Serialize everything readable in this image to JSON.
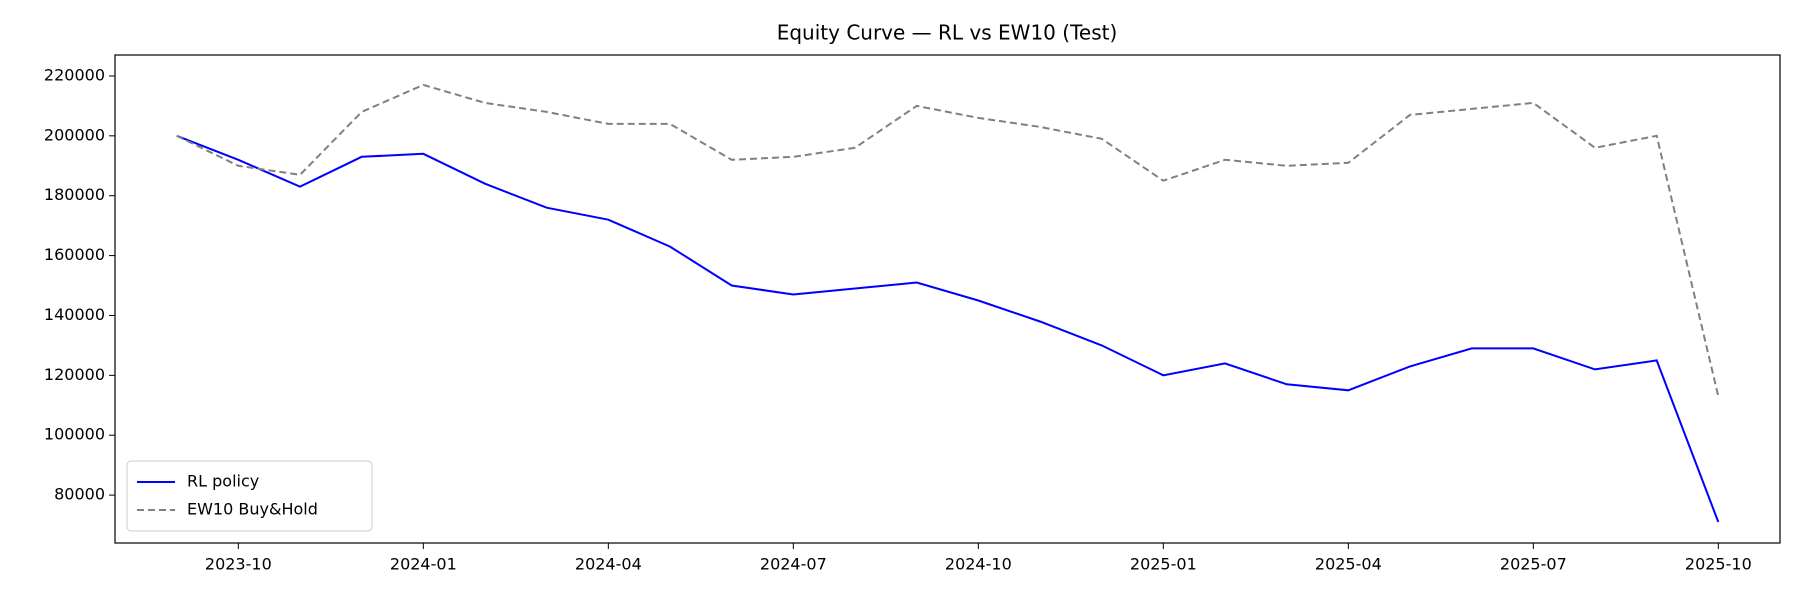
{
  "chart_data": {
    "type": "line",
    "title": "Equity Curve — RL vs EW10 (Test)",
    "x": [
      "2023-09",
      "2023-10",
      "2023-11",
      "2023-12",
      "2024-01",
      "2024-02",
      "2024-03",
      "2024-04",
      "2024-05",
      "2024-06",
      "2024-07",
      "2024-08",
      "2024-09",
      "2024-10",
      "2024-11",
      "2024-12",
      "2025-01",
      "2025-02",
      "2025-03",
      "2025-04",
      "2025-05",
      "2025-06",
      "2025-07",
      "2025-08",
      "2025-09",
      "2025-10"
    ],
    "series": [
      {
        "name": "RL policy",
        "color": "#0000ff",
        "linestyle": "solid",
        "values": [
          200000,
          192000,
          183000,
          193000,
          194000,
          184000,
          176000,
          172000,
          163000,
          150000,
          147000,
          149000,
          151000,
          145000,
          138000,
          130000,
          120000,
          124000,
          117000,
          115000,
          123000,
          129000,
          129000,
          122000,
          125000,
          71000
        ]
      },
      {
        "name": "EW10 Buy&Hold",
        "color": "#808080",
        "linestyle": "dashed",
        "values": [
          200000,
          190000,
          187000,
          208000,
          217000,
          211000,
          208000,
          204000,
          204000,
          192000,
          193000,
          196000,
          210000,
          206000,
          203000,
          199000,
          185000,
          192000,
          190000,
          191000,
          207000,
          209000,
          211000,
          196000,
          200000,
          113000
        ]
      }
    ],
    "xlim": [
      "2023-08",
      "2025-11"
    ],
    "xticks": [
      "2023-10",
      "2024-01",
      "2024-04",
      "2024-07",
      "2024-10",
      "2025-01",
      "2025-04",
      "2025-07",
      "2025-10"
    ],
    "ylim": [
      64000,
      227000
    ],
    "yticks": [
      80000,
      100000,
      120000,
      140000,
      160000,
      180000,
      200000,
      220000
    ],
    "grid": false,
    "legend": "lower left"
  }
}
